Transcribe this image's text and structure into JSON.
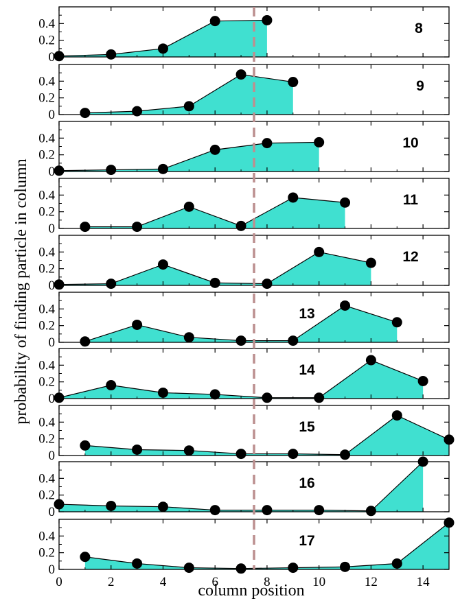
{
  "chart_data": {
    "type": "area",
    "xlabel": "column position",
    "ylabel": "probability of finding particle in column",
    "xlim": [
      0,
      15
    ],
    "ylim": [
      0,
      0.6
    ],
    "x_ticks": [
      0,
      2,
      4,
      6,
      8,
      10,
      12,
      14
    ],
    "y_ticks": [
      0,
      0.2,
      0.4
    ],
    "reference_line_x": 7.5,
    "fill_color": "#40e0d0",
    "line_color": "#000000",
    "marker_color": "#000000",
    "reference_line_color": "#bc8f8f",
    "panels": [
      {
        "label": "8",
        "x": [
          0,
          2,
          4,
          6,
          8
        ],
        "y": [
          0.01,
          0.03,
          0.1,
          0.43,
          0.44
        ]
      },
      {
        "label": "9",
        "x": [
          1,
          3,
          5,
          7,
          9
        ],
        "y": [
          0.02,
          0.04,
          0.1,
          0.48,
          0.39
        ]
      },
      {
        "label": "10",
        "x": [
          0,
          2,
          4,
          6,
          8,
          10
        ],
        "y": [
          0.01,
          0.02,
          0.03,
          0.26,
          0.34,
          0.35
        ]
      },
      {
        "label": "11",
        "x": [
          1,
          3,
          5,
          7,
          9,
          11
        ],
        "y": [
          0.02,
          0.02,
          0.26,
          0.03,
          0.37,
          0.31
        ]
      },
      {
        "label": "12",
        "x": [
          0,
          2,
          4,
          6,
          8,
          10,
          12
        ],
        "y": [
          0.01,
          0.02,
          0.25,
          0.03,
          0.02,
          0.4,
          0.27
        ]
      },
      {
        "label": "13",
        "x": [
          1,
          3,
          5,
          7,
          9,
          11,
          13
        ],
        "y": [
          0.01,
          0.21,
          0.06,
          0.02,
          0.02,
          0.44,
          0.24
        ]
      },
      {
        "label": "14",
        "x": [
          0,
          2,
          4,
          6,
          8,
          10,
          12,
          14
        ],
        "y": [
          0.01,
          0.16,
          0.07,
          0.05,
          0.01,
          0.01,
          0.46,
          0.21
        ]
      },
      {
        "label": "15",
        "x": [
          1,
          3,
          5,
          7,
          9,
          11,
          13,
          15
        ],
        "y": [
          0.12,
          0.07,
          0.06,
          0.02,
          0.02,
          0.01,
          0.48,
          0.19
        ]
      },
      {
        "label": "16",
        "x": [
          0,
          2,
          4,
          6,
          8,
          10,
          12,
          14
        ],
        "y": [
          0.09,
          0.07,
          0.06,
          0.02,
          0.02,
          0.02,
          0.01,
          0.62
        ]
      },
      {
        "label": "17",
        "x": [
          1,
          3,
          5,
          7,
          9,
          11,
          13,
          15
        ],
        "y": [
          0.15,
          0.07,
          0.02,
          0.01,
          0.02,
          0.03,
          0.07,
          0.56
        ]
      }
    ]
  }
}
